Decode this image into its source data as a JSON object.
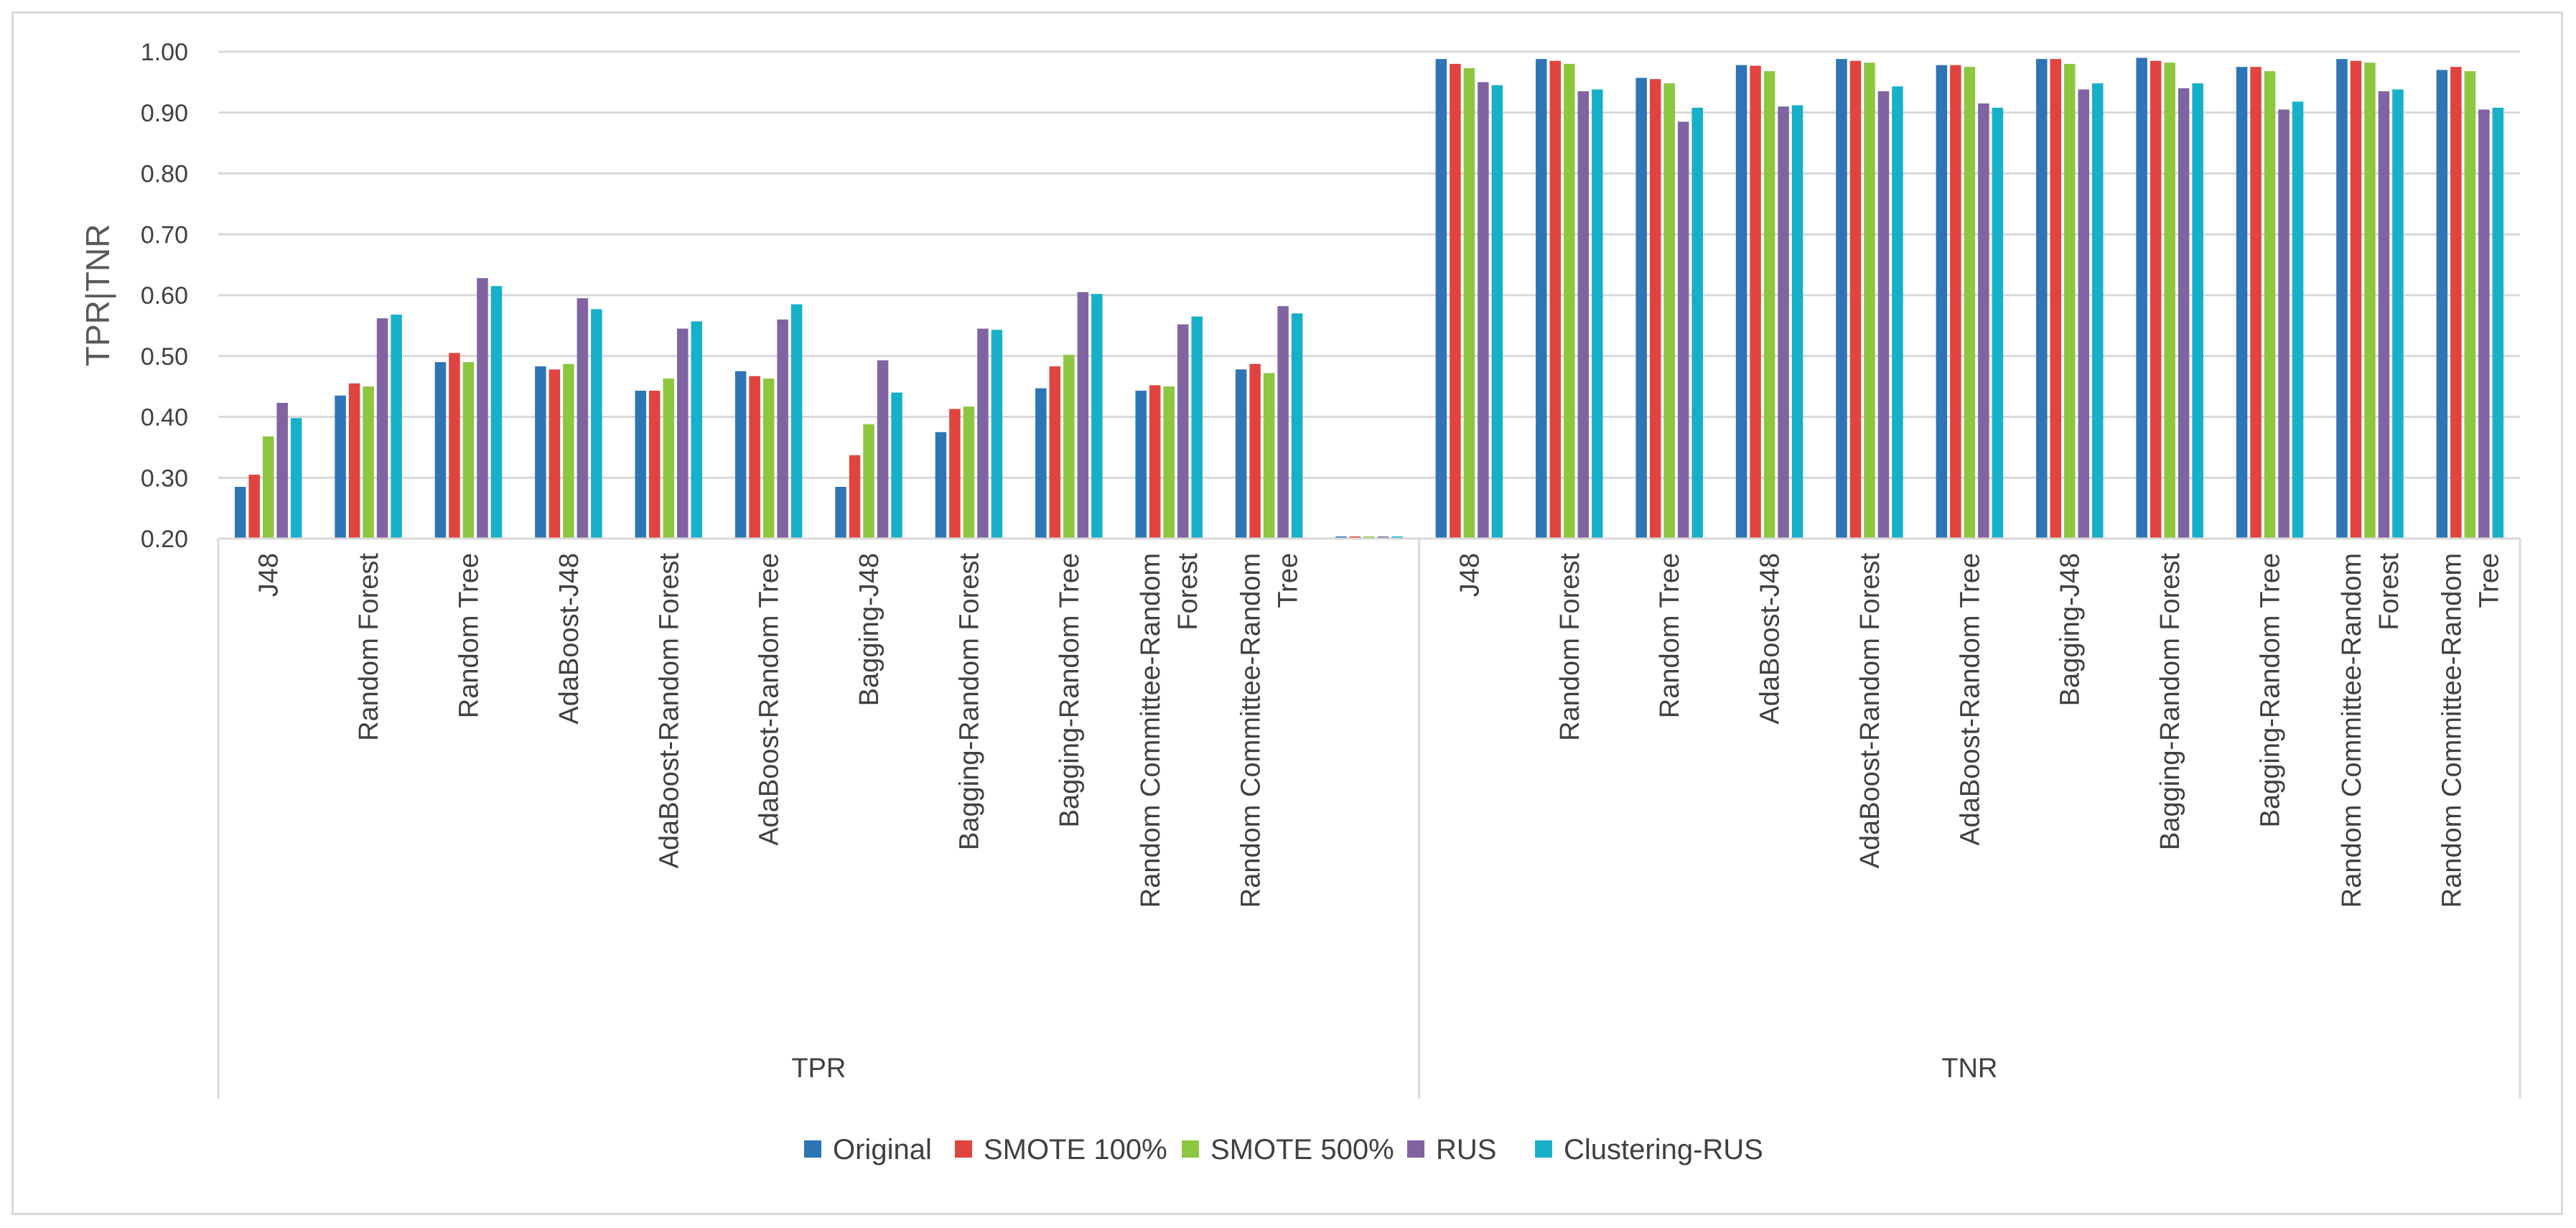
{
  "chart_data": {
    "type": "bar",
    "title": "",
    "xlabel": "",
    "ylabel": "TPR|TNR",
    "ylim": [
      0.2,
      1.0
    ],
    "yticks": [
      "0.20",
      "0.30",
      "0.40",
      "0.50",
      "0.60",
      "0.70",
      "0.80",
      "0.90",
      "1.00"
    ],
    "grid": true,
    "legend_position": "bottom",
    "groups": [
      {
        "name": "TPR",
        "categories": [
          [
            "J48"
          ],
          [
            "Random Forest"
          ],
          [
            "Random Tree"
          ],
          [
            "AdaBoost-J48"
          ],
          [
            "AdaBoost-Random Forest"
          ],
          [
            "AdaBoost-Random Tree"
          ],
          [
            "Bagging-J48"
          ],
          [
            "Bagging-Random Forest"
          ],
          [
            "Bagging-Random Tree"
          ],
          [
            "Random Committee-Random",
            "Forest"
          ],
          [
            "Random Committee-Random",
            "Tree"
          ],
          [
            ""
          ]
        ]
      },
      {
        "name": "TNR",
        "categories": [
          [
            "J48"
          ],
          [
            "Random Forest"
          ],
          [
            "Random Tree"
          ],
          [
            "AdaBoost-J48"
          ],
          [
            "AdaBoost-Random Forest"
          ],
          [
            "AdaBoost-Random Tree"
          ],
          [
            "Bagging-J48"
          ],
          [
            "Bagging-Random Forest"
          ],
          [
            "Bagging-Random Tree"
          ],
          [
            "Random Committee-Random",
            "Forest"
          ],
          [
            "Random Committee-Random",
            "Tree"
          ]
        ]
      }
    ],
    "series": [
      {
        "name": "Original",
        "color": "#2e75b6",
        "values": [
          0.285,
          0.435,
          0.49,
          0.483,
          0.443,
          0.475,
          0.285,
          0.375,
          0.447,
          0.443,
          0.478,
          0.2,
          0.988,
          0.988,
          0.957,
          0.978,
          0.988,
          0.978,
          0.988,
          0.99,
          0.975,
          0.988,
          0.97
        ]
      },
      {
        "name": "SMOTE 100%",
        "color": "#e0443e",
        "values": [
          0.305,
          0.455,
          0.505,
          0.478,
          0.443,
          0.467,
          0.337,
          0.413,
          0.483,
          0.452,
          0.487,
          0.2,
          0.98,
          0.985,
          0.955,
          0.977,
          0.985,
          0.978,
          0.988,
          0.985,
          0.975,
          0.985,
          0.975
        ]
      },
      {
        "name": "SMOTE 500%",
        "color": "#8dc63f",
        "values": [
          0.368,
          0.45,
          0.49,
          0.487,
          0.463,
          0.463,
          0.388,
          0.417,
          0.502,
          0.45,
          0.472,
          0.2,
          0.973,
          0.98,
          0.948,
          0.968,
          0.982,
          0.975,
          0.98,
          0.982,
          0.968,
          0.982,
          0.968
        ]
      },
      {
        "name": "RUS",
        "color": "#8064a2",
        "values": [
          0.423,
          0.562,
          0.628,
          0.595,
          0.545,
          0.56,
          0.493,
          0.545,
          0.605,
          0.552,
          0.582,
          0.2,
          0.95,
          0.935,
          0.885,
          0.91,
          0.935,
          0.915,
          0.938,
          0.94,
          0.905,
          0.935,
          0.905
        ]
      },
      {
        "name": "Clustering-RUS",
        "color": "#17b0c8",
        "values": [
          0.398,
          0.568,
          0.615,
          0.577,
          0.557,
          0.585,
          0.44,
          0.543,
          0.602,
          0.565,
          0.57,
          0.2,
          0.945,
          0.938,
          0.908,
          0.912,
          0.943,
          0.908,
          0.948,
          0.948,
          0.918,
          0.938,
          0.908
        ]
      }
    ]
  }
}
